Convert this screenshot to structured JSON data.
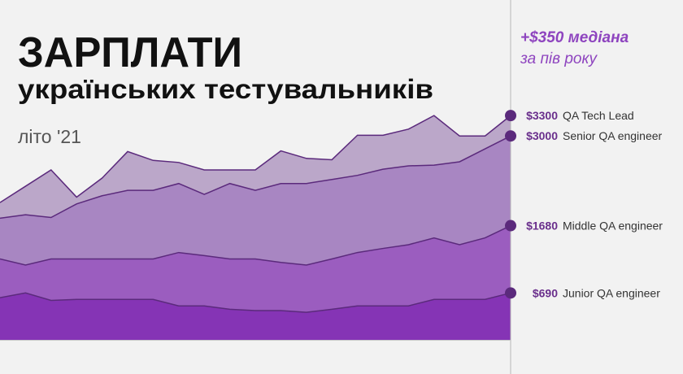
{
  "chart_data": {
    "type": "area",
    "title": "ЗАРПЛАТИ",
    "subtitle": "українських тестувальників",
    "period": "літо '21",
    "annotation": [
      "+$350 медіана",
      "за пів року"
    ],
    "categories": [
      null,
      null,
      null,
      null,
      null,
      null,
      null,
      null,
      null,
      null,
      null,
      null,
      null,
      null,
      null,
      null,
      null,
      null,
      null,
      null,
      null
    ],
    "ylim": [
      0,
      5000
    ],
    "series": [
      {
        "name": "QA Tech Lead",
        "color": "#bba7c9",
        "values": [
          2020,
          2260,
          2500,
          2100,
          2380,
          2770,
          2640,
          2610,
          2500,
          2500,
          2500,
          2780,
          2670,
          2650,
          3010,
          3010,
          3100,
          3300,
          3000,
          3000,
          3300
        ],
        "value_labels": [
          null,
          null,
          null,
          null,
          null,
          null,
          null,
          null,
          null,
          null,
          null,
          null,
          null,
          null,
          null,
          null,
          null,
          null,
          null,
          null,
          "$3300"
        ]
      },
      {
        "name": "Senior QA engineer",
        "color": "#a886c2",
        "values": [
          1790,
          1840,
          1800,
          2000,
          2120,
          2200,
          2200,
          2300,
          2140,
          2300,
          2200,
          2300,
          2300,
          2360,
          2420,
          2510,
          2560,
          2570,
          2620,
          2810,
          3000
        ],
        "value_labels": [
          null,
          null,
          null,
          null,
          null,
          null,
          null,
          null,
          null,
          null,
          null,
          null,
          null,
          null,
          null,
          null,
          null,
          null,
          null,
          null,
          "$3000"
        ]
      },
      {
        "name": "Middle QA engineer",
        "color": "#9b5dbf",
        "values": [
          1190,
          1100,
          1190,
          1190,
          1190,
          1190,
          1190,
          1285,
          1240,
          1190,
          1190,
          1140,
          1100,
          1190,
          1285,
          1345,
          1400,
          1500,
          1400,
          1500,
          1680
        ],
        "value_labels": [
          null,
          null,
          null,
          null,
          null,
          null,
          null,
          null,
          null,
          null,
          null,
          null,
          null,
          null,
          null,
          null,
          null,
          null,
          null,
          null,
          "$1680"
        ]
      },
      {
        "name": "Junior QA engineer",
        "color": "#8534b5",
        "values": [
          620,
          690,
          580,
          595,
          595,
          595,
          595,
          500,
          500,
          450,
          430,
          430,
          405,
          450,
          500,
          500,
          500,
          595,
          595,
          595,
          690
        ],
        "value_labels": [
          null,
          null,
          null,
          null,
          null,
          null,
          null,
          null,
          null,
          null,
          null,
          null,
          null,
          null,
          null,
          null,
          null,
          null,
          null,
          null,
          "$690"
        ]
      }
    ]
  }
}
